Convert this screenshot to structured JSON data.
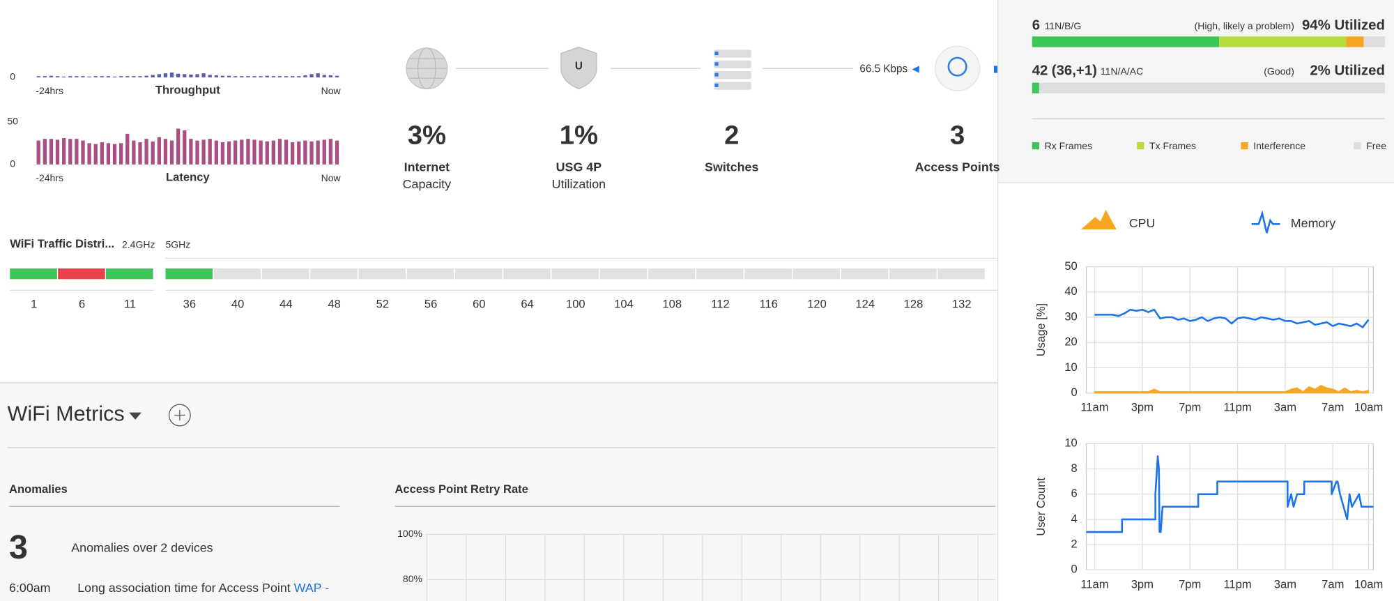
{
  "throughput": {
    "label": "Throughput",
    "start": "-24hrs",
    "end": "Now",
    "ylim": [
      0,
      200
    ],
    "yticks": [
      0
    ],
    "color": "#3b3f9c",
    "values": [
      3,
      3,
      4,
      3,
      2,
      3,
      3,
      3,
      2,
      3,
      3,
      3,
      2,
      3,
      3,
      3,
      3,
      4,
      6,
      8,
      10,
      12,
      9,
      8,
      7,
      8,
      10,
      6,
      5,
      4,
      4,
      3,
      3,
      3,
      3,
      3,
      4,
      3,
      3,
      3,
      3,
      3,
      5,
      8,
      10,
      6,
      5,
      4
    ]
  },
  "latency": {
    "label": "Latency",
    "start": "-24hrs",
    "end": "Now",
    "ylim": [
      0,
      50
    ],
    "yticks": [
      0,
      50
    ],
    "color": "#9c2f6e",
    "values": [
      28,
      30,
      30,
      29,
      31,
      30,
      30,
      28,
      25,
      24,
      26,
      25,
      24,
      25,
      36,
      28,
      26,
      30,
      27,
      32,
      30,
      28,
      42,
      40,
      30,
      28,
      29,
      30,
      28,
      26,
      27,
      28,
      29,
      30,
      29,
      28,
      27,
      28,
      30,
      29,
      26,
      27,
      28,
      27,
      28,
      29,
      30,
      28
    ]
  },
  "topology": {
    "link_speed": "66.5 Kbps",
    "items": [
      {
        "value": "3%",
        "label": "Internet",
        "sublabel": "Capacity"
      },
      {
        "value": "1%",
        "label": "USG 4P",
        "sublabel": "Utilization"
      },
      {
        "value": "2",
        "label": "Switches"
      },
      {
        "value": "3",
        "label": "Access Points"
      }
    ]
  },
  "wifi_traffic": {
    "title": "WiFi Traffic Distri...",
    "band_24": "2.4GHz",
    "band_5": "5GHz",
    "channels_24": [
      "1",
      "6",
      "11"
    ],
    "colors_24": [
      "#3ec55a",
      "#e8414a",
      "#3ec55a"
    ],
    "channels_5": [
      "36",
      "40",
      "44",
      "48",
      "52",
      "56",
      "60",
      "64",
      "100",
      "104",
      "108",
      "112",
      "116",
      "120",
      "124",
      "128",
      "132"
    ],
    "colors_5": [
      "#3ec55a",
      "#e2e2e2",
      "#e2e2e2",
      "#e2e2e2",
      "#e2e2e2",
      "#e2e2e2",
      "#e2e2e2",
      "#e2e2e2",
      "#e2e2e2",
      "#e2e2e2",
      "#e2e2e2",
      "#e2e2e2",
      "#e2e2e2",
      "#e2e2e2",
      "#e2e2e2",
      "#e2e2e2",
      "#e2e2e2"
    ]
  },
  "wifi_metrics": {
    "title": "WiFi Metrics"
  },
  "anomalies": {
    "title": "Anomalies",
    "count": "3",
    "summary": "Anomalies over 2 devices",
    "items": [
      {
        "time": "6:00am",
        "text": "Long association time for Access Point ",
        "link": "WAP -"
      }
    ]
  },
  "retry_rate": {
    "title": "Access Point Retry Rate",
    "ylim": [
      0,
      100
    ],
    "yticks": [
      {
        "value": 100,
        "label": "100%"
      },
      {
        "value": 80,
        "label": "80%"
      }
    ]
  },
  "radio": {
    "rows": [
      {
        "channel": "6",
        "mode": "11N/B/G",
        "status": "(High, likely a problem)",
        "utilization": "94% Utilized",
        "segments": [
          53,
          36,
          5,
          6
        ]
      },
      {
        "channel": "42",
        "channel_detail": "(36,+1)",
        "mode": "11N/A/AC",
        "status": "(Good)",
        "utilization": "2% Utilized",
        "segments": [
          2,
          0,
          0,
          98
        ]
      }
    ],
    "legend": [
      {
        "name": "Rx Frames",
        "color": "#3ec55a"
      },
      {
        "name": "Tx Frames",
        "color": "#b5dc3c"
      },
      {
        "name": "Interference",
        "color": "#f5a623"
      },
      {
        "name": "Free",
        "color": "#dddddd"
      }
    ]
  },
  "charts": [
    {
      "type": "line",
      "ylabel": "Usage [%]",
      "x": [
        0,
        0.5,
        1,
        1.5,
        2,
        2.5,
        3,
        3.5,
        4,
        4.5,
        5,
        5.5,
        6,
        6.5,
        7,
        7.5,
        8,
        8.5,
        9,
        9.5,
        10,
        10.5,
        11,
        11.5,
        12,
        12.5,
        13,
        13.5,
        14,
        14.5,
        15,
        15.5,
        16,
        16.5,
        17,
        17.5,
        18,
        18.5,
        19,
        19.5,
        20,
        20.5,
        21,
        21.5,
        22,
        22.5,
        23
      ],
      "xlim": [
        -0.7,
        23.4
      ],
      "xticks": [
        {
          "value": 0,
          "label": "11am"
        },
        {
          "value": 4,
          "label": "3pm"
        },
        {
          "value": 8,
          "label": "7pm"
        },
        {
          "value": 12,
          "label": "11pm"
        },
        {
          "value": 16,
          "label": "3am"
        },
        {
          "value": 20,
          "label": "7am"
        },
        {
          "value": 23,
          "label": "10am"
        }
      ],
      "ylim": [
        0,
        50
      ],
      "yticks": [
        0,
        10,
        20,
        30,
        40,
        50
      ],
      "grid": true,
      "series": [
        {
          "name": "CPU",
          "color": "#f5a623",
          "fill": true,
          "values": [
            0.5,
            0.5,
            0.5,
            0.5,
            0.5,
            0.5,
            0.5,
            0.5,
            0.5,
            0.5,
            1.5,
            0.5,
            0.5,
            0.5,
            0.5,
            0.5,
            0.5,
            0.5,
            0.5,
            0.5,
            0.5,
            0.5,
            0.5,
            0.5,
            0.5,
            0.5,
            0.5,
            0.5,
            0.5,
            0.5,
            0.5,
            0.5,
            0.5,
            1.5,
            2,
            0.5,
            2.5,
            1.5,
            3,
            2,
            1.5,
            0.5,
            2,
            0.5,
            1,
            0.5,
            1
          ]
        },
        {
          "name": "Memory",
          "color": "#1a73e8",
          "values": [
            31,
            31,
            31,
            31,
            30.5,
            31.5,
            33,
            32.5,
            33,
            32,
            33,
            29.5,
            30,
            30,
            29,
            29.5,
            28.5,
            29,
            30,
            28.5,
            29.5,
            30,
            29.5,
            27.5,
            29.5,
            30,
            29.5,
            29,
            30,
            29.5,
            29,
            29.5,
            28.5,
            28.5,
            27.5,
            28,
            28.5,
            27,
            27.5,
            28,
            26.5,
            27.5,
            27,
            26.5,
            27.5,
            26,
            29
          ]
        }
      ]
    },
    {
      "type": "line",
      "ylabel": "User Count",
      "x": [
        -0.7,
        2.3,
        2.3,
        5.1,
        5.1,
        5.3,
        5.4,
        5.45,
        5.55,
        5.7,
        5.7,
        8.7,
        8.7,
        10.3,
        10.3,
        16.2,
        16.2,
        16.5,
        16.7,
        17.0,
        17.1,
        17.6,
        17.6,
        19.9,
        19.9,
        20.3,
        20.4,
        20.6,
        21.2,
        21.4,
        21.6,
        22.2,
        22.4,
        23.4
      ],
      "xlim": [
        -0.7,
        23.4
      ],
      "xticks": [
        {
          "value": 0,
          "label": "11am"
        },
        {
          "value": 4,
          "label": "3pm"
        },
        {
          "value": 8,
          "label": "7pm"
        },
        {
          "value": 12,
          "label": "11pm"
        },
        {
          "value": 16,
          "label": "3am"
        },
        {
          "value": 20,
          "label": "7am"
        },
        {
          "value": 23,
          "label": "10am"
        }
      ],
      "ylim": [
        0,
        10
      ],
      "yticks": [
        0,
        2,
        4,
        6,
        8,
        10
      ],
      "grid": true,
      "series": [
        {
          "color": "#1a73e8",
          "values": [
            3,
            3,
            4,
            4,
            6,
            9,
            8,
            3,
            3,
            5,
            5,
            5,
            6,
            6,
            7,
            7,
            5,
            6,
            5,
            6,
            6,
            6,
            7,
            7,
            6,
            7,
            7,
            6,
            4,
            6,
            5,
            6,
            5,
            5
          ]
        }
      ]
    }
  ]
}
